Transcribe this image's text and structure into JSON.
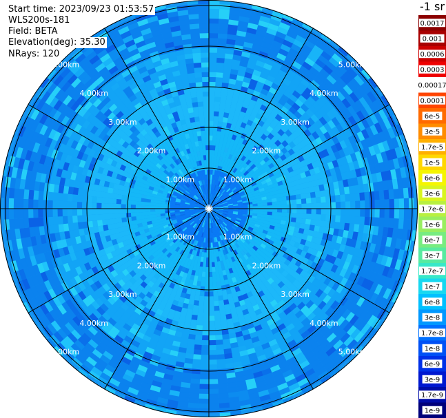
{
  "info": {
    "start_time": "Start time: 2023/09/23 01:53:57",
    "device": "WLS200s-181",
    "field": "Field: BETA",
    "elevation": "Elevation(deg): 35.30",
    "nrays": "NRays: 120"
  },
  "colorbar": {
    "unit_label": "-1 sr",
    "ticks": [
      "0.0017",
      "0.001",
      "0.0006",
      "0.0003",
      "0.00017",
      "0.0001",
      "6e-5",
      "3e-5",
      "1.7e-5",
      "1e-5",
      "6e-6",
      "3e-6",
      "1.7e-6",
      "1e-6",
      "6e-7",
      "3e-7",
      "1.7e-7",
      "1e-7",
      "6e-8",
      "3e-8",
      "1.7e-8",
      "1e-8",
      "6e-9",
      "3e-9",
      "1.7e-9",
      "1e-9"
    ],
    "colors": [
      "#8b0000",
      "#a80000",
      "#cc0000",
      "#ee0000",
      "#ffffff",
      "#ff4500",
      "#ff6a00",
      "#ff8c00",
      "#ffb000",
      "#ffd700",
      "#f5f500",
      "#d8f520",
      "#b8f040",
      "#98ee60",
      "#78ec80",
      "#58eaa0",
      "#38e8c8",
      "#18d8f0",
      "#00c0ff",
      "#0098ff",
      "#0070ff",
      "#0050f5",
      "#0030e8",
      "#0018d0",
      "#000ca8",
      "#00007a"
    ]
  },
  "chart_data": {
    "type": "polar-heatmap",
    "title": "",
    "field": "BETA",
    "elevation_deg": 35.3,
    "n_rays": 120,
    "range_rings_km": [
      1.0,
      2.0,
      3.0,
      4.0,
      5.0
    ],
    "ring_labels": [
      "1.00km",
      "2.00km",
      "3.00km",
      "4.00km",
      "5.00km"
    ],
    "spokes_deg_step": 30,
    "grid": true,
    "value_bands": [
      {
        "range_km": [
          0.0,
          1.0
        ],
        "dominant_value": "1.7e-8",
        "color": "#0a78f5"
      },
      {
        "range_km": [
          1.0,
          2.0
        ],
        "dominant_value": "3e-8",
        "color": "#14b8f8"
      },
      {
        "range_km": [
          2.0,
          3.0
        ],
        "dominant_value": "3e-8",
        "color": "#1cb8fa"
      },
      {
        "range_km": [
          3.0,
          4.0
        ],
        "dominant_value": "3e-8",
        "color": "#12a4f6"
      },
      {
        "range_km": [
          4.0,
          5.0
        ],
        "dominant_value": "1.7e-8",
        "color": "#0b82ee"
      },
      {
        "range_km": [
          5.0,
          5.6
        ],
        "dominant_value": "1.7e-8",
        "color": "#1696f2"
      }
    ]
  }
}
